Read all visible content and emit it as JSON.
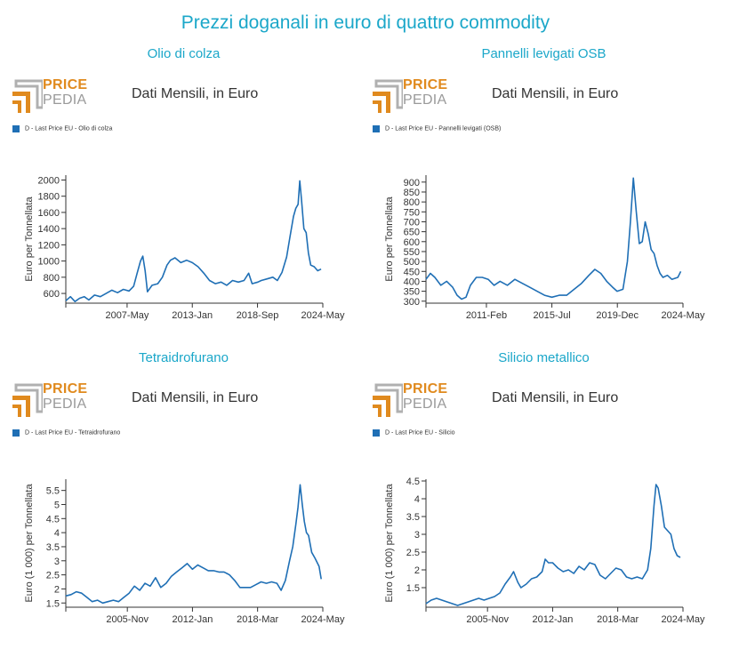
{
  "page": {
    "title": "Prezzi doganali in euro di quattro commodity"
  },
  "logo": {
    "line1": "PRICE",
    "line2": "PEDIA"
  },
  "panels": [
    {
      "title": "Olio di colza",
      "subtitle": "Dati Mensili, in Euro",
      "legend": "D - Last Price EU - Olio di colza"
    },
    {
      "title": "Pannelli levigati OSB",
      "subtitle": "Dati Mensili, in Euro",
      "legend": "D - Last Price EU - Pannelli levigati (OSB)"
    },
    {
      "title": "Tetraidrofurano",
      "subtitle": "Dati Mensili, in Euro",
      "legend": "D - Last Price EU - Tetraidrofurano"
    },
    {
      "title": "Silicio metallico",
      "subtitle": "Dati Mensili, in Euro",
      "legend": "D - Last Price EU - Silicio"
    }
  ],
  "colors": {
    "line": "#1f6fb5",
    "title": "#1ba7c9",
    "logo_orange": "#e08a1e",
    "logo_gray": "#9a9a9a"
  },
  "chart_data": [
    {
      "type": "line",
      "title": "Olio di colza",
      "ylabel": "Euro per Tonnellata",
      "xlabel": "",
      "yticks": [
        600,
        800,
        1000,
        1200,
        1400,
        1600,
        1800,
        2000
      ],
      "ylim": [
        480,
        2060
      ],
      "xlim": [
        2002.0,
        2024.35
      ],
      "xticks": [
        {
          "label": "2007-May",
          "x": 2007.33
        },
        {
          "label": "2013-Jan",
          "x": 2013.0
        },
        {
          "label": "2018-Sep",
          "x": 2018.67
        },
        {
          "label": "2024-May",
          "x": 2024.35
        }
      ],
      "series": [
        {
          "values": [
            [
              2002.0,
              510
            ],
            [
              2002.4,
              560
            ],
            [
              2002.8,
              500
            ],
            [
              2003.2,
              540
            ],
            [
              2003.6,
              560
            ],
            [
              2004.0,
              520
            ],
            [
              2004.5,
              580
            ],
            [
              2005.0,
              560
            ],
            [
              2005.5,
              600
            ],
            [
              2006.0,
              640
            ],
            [
              2006.5,
              610
            ],
            [
              2007.0,
              650
            ],
            [
              2007.5,
              630
            ],
            [
              2007.9,
              690
            ],
            [
              2008.2,
              850
            ],
            [
              2008.5,
              1000
            ],
            [
              2008.7,
              1060
            ],
            [
              2008.9,
              880
            ],
            [
              2009.1,
              620
            ],
            [
              2009.5,
              700
            ],
            [
              2010.0,
              720
            ],
            [
              2010.4,
              800
            ],
            [
              2010.8,
              950
            ],
            [
              2011.1,
              1010
            ],
            [
              2011.5,
              1040
            ],
            [
              2012.0,
              980
            ],
            [
              2012.5,
              1010
            ],
            [
              2013.0,
              980
            ],
            [
              2013.5,
              930
            ],
            [
              2014.0,
              850
            ],
            [
              2014.5,
              760
            ],
            [
              2015.0,
              720
            ],
            [
              2015.5,
              740
            ],
            [
              2016.0,
              700
            ],
            [
              2016.5,
              760
            ],
            [
              2017.0,
              740
            ],
            [
              2017.5,
              760
            ],
            [
              2017.9,
              850
            ],
            [
              2018.2,
              720
            ],
            [
              2018.7,
              740
            ],
            [
              2019.0,
              760
            ],
            [
              2019.5,
              780
            ],
            [
              2020.0,
              800
            ],
            [
              2020.4,
              760
            ],
            [
              2020.8,
              860
            ],
            [
              2021.2,
              1050
            ],
            [
              2021.5,
              1300
            ],
            [
              2021.8,
              1550
            ],
            [
              2022.0,
              1650
            ],
            [
              2022.2,
              1700
            ],
            [
              2022.35,
              1990
            ],
            [
              2022.5,
              1750
            ],
            [
              2022.7,
              1400
            ],
            [
              2022.9,
              1350
            ],
            [
              2023.1,
              1100
            ],
            [
              2023.3,
              950
            ],
            [
              2023.6,
              930
            ],
            [
              2023.9,
              880
            ],
            [
              2024.2,
              900
            ]
          ]
        }
      ]
    },
    {
      "type": "line",
      "title": "Pannelli levigati OSB",
      "ylabel": "Euro per Tonnellata",
      "xlabel": "",
      "yticks": [
        300,
        350,
        400,
        450,
        500,
        550,
        600,
        650,
        700,
        750,
        800,
        850,
        900
      ],
      "ylim": [
        290,
        935
      ],
      "xlim": [
        2007.0,
        2024.35
      ],
      "xticks": [
        {
          "label": "2011-Feb",
          "x": 2011.08
        },
        {
          "label": "2015-Jul",
          "x": 2015.5
        },
        {
          "label": "2019-Dec",
          "x": 2019.92
        },
        {
          "label": "2024-May",
          "x": 2024.35
        }
      ],
      "series": [
        {
          "values": [
            [
              2007.0,
              410
            ],
            [
              2007.3,
              440
            ],
            [
              2007.6,
              420
            ],
            [
              2008.0,
              380
            ],
            [
              2008.4,
              400
            ],
            [
              2008.8,
              370
            ],
            [
              2009.1,
              330
            ],
            [
              2009.4,
              310
            ],
            [
              2009.7,
              320
            ],
            [
              2010.0,
              380
            ],
            [
              2010.4,
              420
            ],
            [
              2010.8,
              420
            ],
            [
              2011.2,
              410
            ],
            [
              2011.6,
              380
            ],
            [
              2012.0,
              400
            ],
            [
              2012.5,
              380
            ],
            [
              2013.0,
              410
            ],
            [
              2013.5,
              390
            ],
            [
              2014.0,
              370
            ],
            [
              2014.5,
              350
            ],
            [
              2015.0,
              330
            ],
            [
              2015.5,
              320
            ],
            [
              2016.0,
              330
            ],
            [
              2016.5,
              330
            ],
            [
              2017.0,
              360
            ],
            [
              2017.5,
              390
            ],
            [
              2018.0,
              430
            ],
            [
              2018.4,
              460
            ],
            [
              2018.8,
              440
            ],
            [
              2019.2,
              400
            ],
            [
              2019.6,
              370
            ],
            [
              2019.9,
              350
            ],
            [
              2020.3,
              360
            ],
            [
              2020.6,
              500
            ],
            [
              2020.8,
              700
            ],
            [
              2021.0,
              920
            ],
            [
              2021.2,
              750
            ],
            [
              2021.4,
              590
            ],
            [
              2021.6,
              600
            ],
            [
              2021.8,
              700
            ],
            [
              2022.0,
              640
            ],
            [
              2022.2,
              560
            ],
            [
              2022.4,
              540
            ],
            [
              2022.6,
              480
            ],
            [
              2022.8,
              440
            ],
            [
              2023.0,
              420
            ],
            [
              2023.3,
              430
            ],
            [
              2023.6,
              410
            ],
            [
              2024.0,
              420
            ],
            [
              2024.2,
              450
            ]
          ]
        }
      ]
    },
    {
      "type": "line",
      "title": "Tetraidrofurano",
      "ylabel": "Euro (1 000) per Tonnellata",
      "xlabel": "",
      "yticks": [
        1.5,
        2.0,
        2.5,
        3.0,
        3.5,
        4.0,
        4.5,
        5.0,
        5.5
      ],
      "ylim": [
        1.35,
        5.9
      ],
      "xlim": [
        2000.0,
        2024.35
      ],
      "xticks": [
        {
          "label": "2005-Nov",
          "x": 2005.83
        },
        {
          "label": "2012-Jan",
          "x": 2012.0
        },
        {
          "label": "2018-Mar",
          "x": 2018.17
        },
        {
          "label": "2024-May",
          "x": 2024.35
        }
      ],
      "series": [
        {
          "values": [
            [
              2000.0,
              1.75
            ],
            [
              2000.5,
              1.8
            ],
            [
              2001.0,
              1.9
            ],
            [
              2001.5,
              1.85
            ],
            [
              2002.0,
              1.7
            ],
            [
              2002.5,
              1.55
            ],
            [
              2003.0,
              1.6
            ],
            [
              2003.5,
              1.5
            ],
            [
              2004.0,
              1.55
            ],
            [
              2004.5,
              1.6
            ],
            [
              2005.0,
              1.55
            ],
            [
              2005.5,
              1.7
            ],
            [
              2006.0,
              1.85
            ],
            [
              2006.5,
              2.1
            ],
            [
              2007.0,
              1.95
            ],
            [
              2007.5,
              2.2
            ],
            [
              2008.0,
              2.1
            ],
            [
              2008.5,
              2.4
            ],
            [
              2009.0,
              2.05
            ],
            [
              2009.5,
              2.2
            ],
            [
              2010.0,
              2.45
            ],
            [
              2010.5,
              2.6
            ],
            [
              2011.0,
              2.75
            ],
            [
              2011.5,
              2.9
            ],
            [
              2012.0,
              2.7
            ],
            [
              2012.5,
              2.85
            ],
            [
              2013.0,
              2.75
            ],
            [
              2013.5,
              2.65
            ],
            [
              2014.0,
              2.65
            ],
            [
              2014.5,
              2.6
            ],
            [
              2015.0,
              2.6
            ],
            [
              2015.5,
              2.5
            ],
            [
              2016.0,
              2.3
            ],
            [
              2016.5,
              2.05
            ],
            [
              2017.0,
              2.05
            ],
            [
              2017.5,
              2.05
            ],
            [
              2018.0,
              2.15
            ],
            [
              2018.5,
              2.25
            ],
            [
              2019.0,
              2.2
            ],
            [
              2019.5,
              2.25
            ],
            [
              2020.0,
              2.2
            ],
            [
              2020.4,
              1.95
            ],
            [
              2020.8,
              2.3
            ],
            [
              2021.2,
              3.0
            ],
            [
              2021.5,
              3.5
            ],
            [
              2021.8,
              4.3
            ],
            [
              2022.0,
              4.9
            ],
            [
              2022.2,
              5.7
            ],
            [
              2022.4,
              5.0
            ],
            [
              2022.6,
              4.4
            ],
            [
              2022.8,
              4.0
            ],
            [
              2023.0,
              3.9
            ],
            [
              2023.3,
              3.3
            ],
            [
              2023.6,
              3.1
            ],
            [
              2024.0,
              2.8
            ],
            [
              2024.2,
              2.35
            ]
          ]
        }
      ]
    },
    {
      "type": "line",
      "title": "Silicio metallico",
      "ylabel": "Euro (1 000) per Tonnellata",
      "xlabel": "",
      "yticks": [
        1.5,
        2.0,
        2.5,
        3.0,
        3.5,
        4.0,
        4.5
      ],
      "ylim": [
        0.95,
        4.55
      ],
      "xlim": [
        2000.0,
        2024.35
      ],
      "xticks": [
        {
          "label": "2005-Nov",
          "x": 2005.83
        },
        {
          "label": "2012-Jan",
          "x": 2012.0
        },
        {
          "label": "2018-Mar",
          "x": 2018.17
        },
        {
          "label": "2024-May",
          "x": 2024.35
        }
      ],
      "series": [
        {
          "values": [
            [
              2000.0,
              1.05
            ],
            [
              2000.5,
              1.15
            ],
            [
              2001.0,
              1.2
            ],
            [
              2001.5,
              1.15
            ],
            [
              2002.0,
              1.1
            ],
            [
              2002.5,
              1.05
            ],
            [
              2003.0,
              1.0
            ],
            [
              2003.5,
              1.05
            ],
            [
              2004.0,
              1.1
            ],
            [
              2004.5,
              1.15
            ],
            [
              2005.0,
              1.2
            ],
            [
              2005.5,
              1.15
            ],
            [
              2006.0,
              1.2
            ],
            [
              2006.5,
              1.25
            ],
            [
              2007.0,
              1.35
            ],
            [
              2007.5,
              1.6
            ],
            [
              2008.0,
              1.8
            ],
            [
              2008.3,
              1.95
            ],
            [
              2008.7,
              1.65
            ],
            [
              2009.0,
              1.5
            ],
            [
              2009.5,
              1.6
            ],
            [
              2010.0,
              1.75
            ],
            [
              2010.5,
              1.8
            ],
            [
              2011.0,
              1.95
            ],
            [
              2011.3,
              2.3
            ],
            [
              2011.6,
              2.2
            ],
            [
              2012.0,
              2.2
            ],
            [
              2012.5,
              2.05
            ],
            [
              2013.0,
              1.95
            ],
            [
              2013.5,
              2.0
            ],
            [
              2014.0,
              1.9
            ],
            [
              2014.5,
              2.1
            ],
            [
              2015.0,
              2.0
            ],
            [
              2015.5,
              2.2
            ],
            [
              2016.0,
              2.15
            ],
            [
              2016.5,
              1.85
            ],
            [
              2017.0,
              1.75
            ],
            [
              2017.5,
              1.9
            ],
            [
              2018.0,
              2.05
            ],
            [
              2018.5,
              2.0
            ],
            [
              2019.0,
              1.8
            ],
            [
              2019.5,
              1.75
            ],
            [
              2020.0,
              1.8
            ],
            [
              2020.5,
              1.75
            ],
            [
              2021.0,
              2.0
            ],
            [
              2021.3,
              2.6
            ],
            [
              2021.6,
              3.8
            ],
            [
              2021.8,
              4.4
            ],
            [
              2022.0,
              4.3
            ],
            [
              2022.3,
              3.8
            ],
            [
              2022.6,
              3.2
            ],
            [
              2022.9,
              3.1
            ],
            [
              2023.2,
              3.0
            ],
            [
              2023.5,
              2.6
            ],
            [
              2023.8,
              2.4
            ],
            [
              2024.1,
              2.35
            ]
          ]
        }
      ]
    }
  ]
}
